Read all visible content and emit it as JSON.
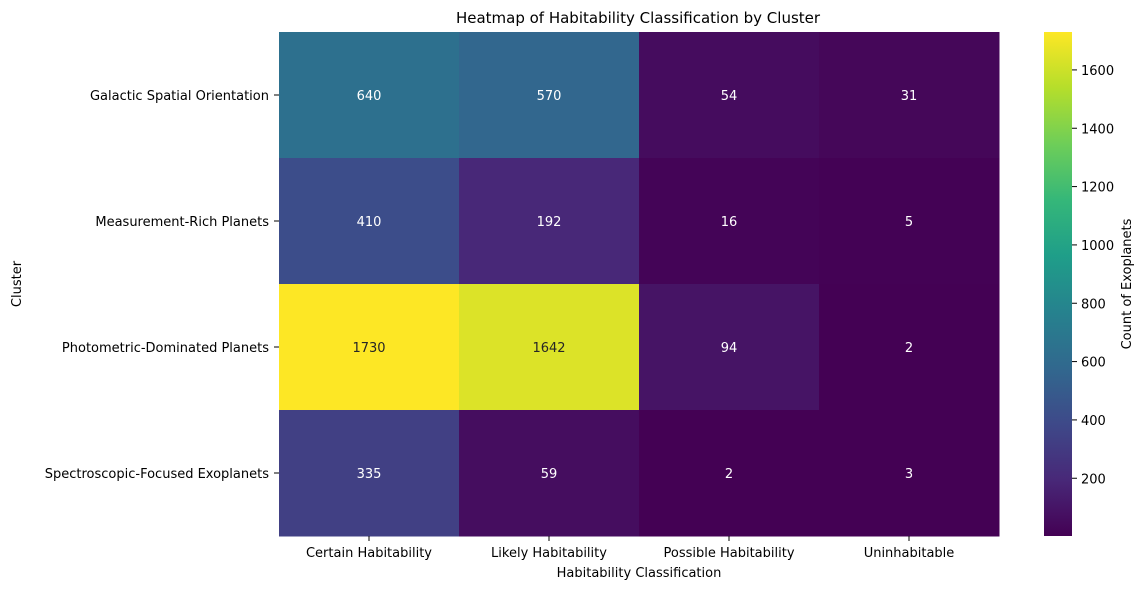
{
  "chart_data": {
    "type": "heatmap",
    "title": "Heatmap of Habitability Classification by Cluster",
    "xlabel": "Habitability Classification",
    "ylabel": "Cluster",
    "x_categories": [
      "Certain Habitability",
      "Likely Habitability",
      "Possible Habitability",
      "Uninhabitable"
    ],
    "y_categories": [
      "Galactic Spatial Orientation",
      "Measurement-Rich Planets",
      "Photometric-Dominated Planets",
      "Spectroscopic-Focused Exoplanets"
    ],
    "values": [
      [
        640,
        570,
        54,
        31
      ],
      [
        410,
        192,
        16,
        5
      ],
      [
        1730,
        1642,
        94,
        2
      ],
      [
        335,
        59,
        2,
        3
      ]
    ],
    "colormap": "viridis",
    "vmin": 2,
    "vmax": 1730,
    "colorbar": {
      "label": "Count of Exoplanets",
      "ticks": [
        200,
        400,
        600,
        800,
        1000,
        1200,
        1400,
        1600
      ]
    },
    "colors": {
      "viridis_stops": [
        "#440154",
        "#482878",
        "#3e4989",
        "#31688e",
        "#26828e",
        "#1f9e89",
        "#35b779",
        "#6ece58",
        "#b5de2b",
        "#fde725"
      ],
      "label_light": "#ffffff",
      "label_dark": "#262626"
    }
  }
}
